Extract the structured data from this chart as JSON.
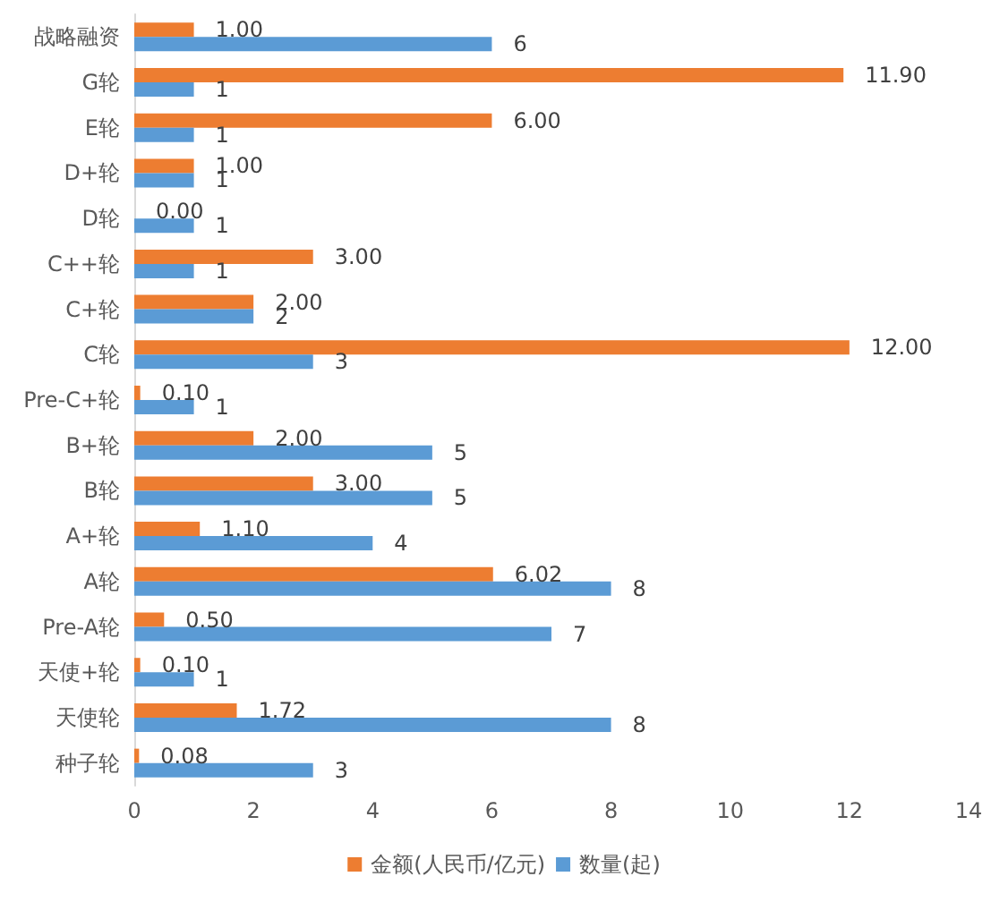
{
  "chart_data": {
    "type": "bar",
    "orientation": "horizontal",
    "categories": [
      "战略融资",
      "G轮",
      "E轮",
      "D+轮",
      "D轮",
      "C++轮",
      "C+轮",
      "C轮",
      "Pre-C+轮",
      "B+轮",
      "B轮",
      "A+轮",
      "A轮",
      "Pre-A轮",
      "天使+轮",
      "天使轮",
      "种子轮"
    ],
    "series": [
      {
        "name": "金额(人民币/亿元)",
        "color": "#ed7d31",
        "values": [
          1.0,
          11.9,
          6.0,
          1.0,
          0.0,
          3.0,
          2.0,
          12.0,
          0.1,
          2.0,
          3.0,
          1.1,
          6.02,
          0.5,
          0.1,
          1.72,
          0.08
        ],
        "value_labels": [
          "1.00",
          "11.90",
          "6.00",
          "1.00",
          "0.00",
          "3.00",
          "2.00",
          "12.00",
          "0.10",
          "2.00",
          "3.00",
          "1.10",
          "6.02",
          "0.50",
          "0.10",
          "1.72",
          "0.08"
        ]
      },
      {
        "name": "数量(起)",
        "color": "#5b9bd5",
        "values": [
          6,
          1,
          1,
          1,
          1,
          1,
          2,
          3,
          1,
          5,
          5,
          4,
          8,
          7,
          1,
          8,
          3
        ],
        "value_labels": [
          "6",
          "1",
          "1",
          "1",
          "1",
          "1",
          "2",
          "3",
          "1",
          "5",
          "5",
          "4",
          "8",
          "7",
          "1",
          "8",
          "3"
        ]
      }
    ],
    "xlim": [
      0,
      14
    ],
    "xticks": [
      0,
      2,
      4,
      6,
      8,
      10,
      12,
      14
    ],
    "grid": false,
    "legend": "bottom"
  }
}
